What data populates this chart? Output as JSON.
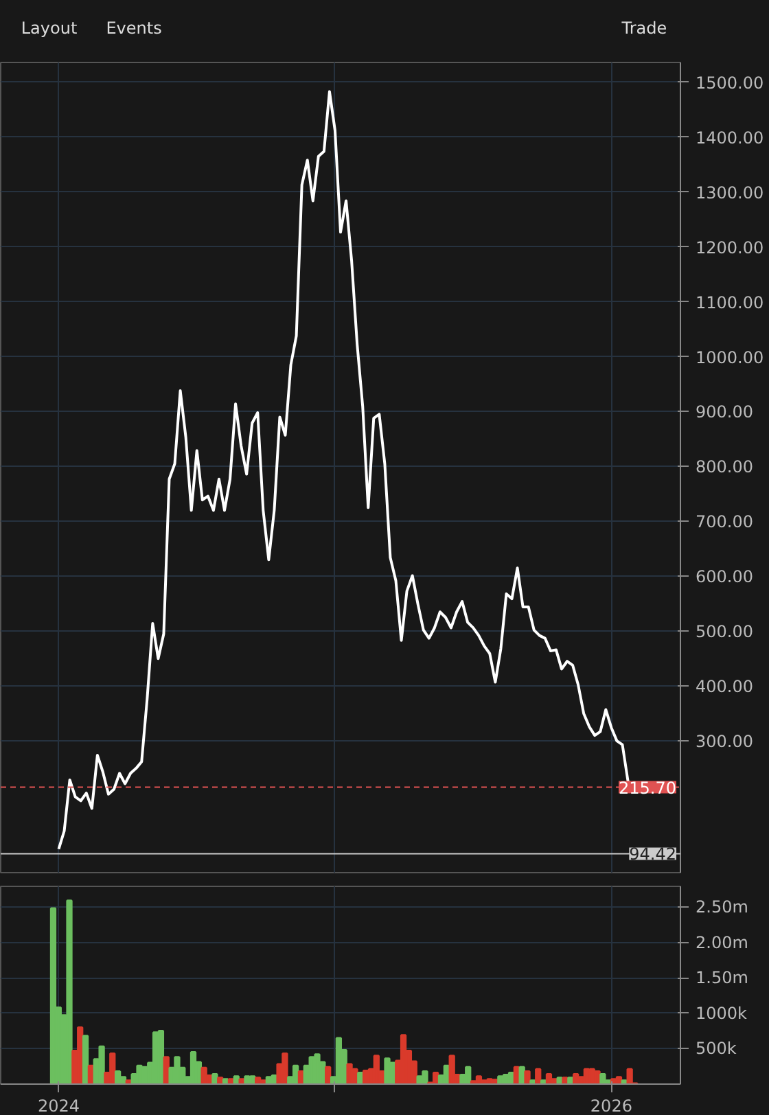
{
  "chart_data": [
    {
      "type": "line",
      "annotations": [
        "Layout",
        "Events",
        "Trade"
      ],
      "x": [
        2024,
        2024.02,
        2024.04,
        2024.06,
        2024.08,
        2024.1,
        2024.12,
        2024.14,
        2024.16,
        2024.18,
        2024.2,
        2024.22,
        2024.24,
        2024.26,
        2024.28,
        2024.3,
        2024.32,
        2024.34,
        2024.36,
        2024.38,
        2024.4,
        2024.42,
        2024.44,
        2024.46,
        2024.48,
        2024.5,
        2024.52,
        2024.54,
        2024.56,
        2024.58,
        2024.6,
        2024.62,
        2024.64,
        2024.66,
        2024.68,
        2024.7,
        2024.72,
        2024.74,
        2024.76,
        2024.78,
        2024.8,
        2024.82,
        2024.84,
        2024.86,
        2024.88,
        2024.9,
        2024.92,
        2024.94,
        2024.96,
        2024.98,
        2025,
        2025.02,
        2025.04,
        2025.06,
        2025.08,
        2025.1,
        2025.12,
        2025.14,
        2025.16,
        2025.18,
        2025.2,
        2025.22,
        2025.24,
        2025.26,
        2025.28,
        2025.3,
        2025.32,
        2025.34,
        2025.36,
        2025.38,
        2025.4,
        2025.42,
        2025.44,
        2025.46,
        2025.48,
        2025.5,
        2025.52,
        2025.54,
        2025.56,
        2025.58,
        2025.6,
        2025.62,
        2025.64,
        2025.66,
        2025.68,
        2025.7,
        2025.72,
        2025.74,
        2025.76,
        2025.78,
        2025.8,
        2025.82,
        2025.84,
        2025.86,
        2025.88,
        2025.9,
        2025.92,
        2025.94,
        2025.96,
        2025.98,
        2026,
        2026.02,
        2026.04,
        2026.06,
        2026.08
      ],
      "series": [
        {
          "color": "#ffffff",
          "values": [
            103,
            136,
            229,
            198,
            191,
            205,
            177,
            274,
            243,
            203,
            212,
            241,
            222,
            241,
            250,
            262,
            376,
            514,
            450,
            495,
            777,
            805,
            938,
            853,
            720,
            829,
            739,
            746,
            720,
            777,
            720,
            777,
            914,
            838,
            786,
            879,
            898,
            720,
            630,
            720,
            890,
            857,
            985,
            1038,
            1313,
            1358,
            1284,
            1365,
            1374,
            1483,
            1412,
            1227,
            1284,
            1175,
            1023,
            910,
            725,
            888,
            895,
            805,
            634,
            592,
            483,
            573,
            601,
            549,
            502,
            487,
            506,
            535,
            525,
            506,
            535,
            554,
            516,
            506,
            492,
            473,
            459,
            407,
            468,
            568,
            559,
            615,
            544,
            544,
            502,
            492,
            487,
            464,
            466,
            431,
            445,
            438,
            402,
            350,
            326,
            310,
            317,
            357,
            324,
            300,
            293,
            227,
            216
          ]
        }
      ],
      "xlim": [
        2023.79,
        2026.25
      ],
      "xticks": [
        {
          "value": 2024,
          "label": null
        },
        {
          "value": 2025,
          "label": null
        },
        {
          "value": 2026,
          "label": null
        }
      ],
      "ylim": [
        60,
        1536
      ],
      "yticks": [
        {
          "value": 300,
          "label": "300.00"
        },
        {
          "value": 400,
          "label": "400.00"
        },
        {
          "value": 500,
          "label": "500.00"
        },
        {
          "value": 600,
          "label": "600.00"
        },
        {
          "value": 700,
          "label": "700.00"
        },
        {
          "value": 800,
          "label": "800.00"
        },
        {
          "value": 900,
          "label": "900.00"
        },
        {
          "value": 1000,
          "label": "1000.00"
        },
        {
          "value": 1100,
          "label": "1100.00"
        },
        {
          "value": 1200,
          "label": "1200.00"
        },
        {
          "value": 1300,
          "label": "1300.00"
        },
        {
          "value": 1400,
          "label": "1400.00"
        },
        {
          "value": 1500,
          "label": "1500.00"
        }
      ],
      "ref_lines": [
        {
          "axis": "y",
          "value": 215.7,
          "label": "215.70",
          "color": "#e05252",
          "line_style": "dashed"
        },
        {
          "axis": "y",
          "value": 94.42,
          "label": "94.42",
          "color": "#cccccc",
          "line_style": "solid"
        }
      ],
      "grid": true,
      "tick_labels": "y"
    },
    {
      "type": "bar",
      "x": [
        2023.98,
        2023.9995,
        2024.019,
        2024.0385,
        2024.058,
        2024.0775,
        2024.097,
        2024.1165,
        2024.136,
        2024.1555,
        2024.175,
        2024.1945,
        2024.214,
        2024.2335,
        2024.253,
        2024.2725,
        2024.292,
        2024.3115,
        2024.331,
        2024.3505,
        2024.37,
        2024.3895,
        2024.409,
        2024.4285,
        2024.448,
        2024.4675,
        2024.487,
        2024.5065,
        2024.526,
        2024.5455,
        2024.565,
        2024.5845,
        2024.604,
        2024.6235,
        2024.643,
        2024.6625,
        2024.682,
        2024.7015,
        2024.721,
        2024.7405,
        2024.76,
        2024.7795,
        2024.799,
        2024.8185,
        2024.838,
        2024.8575,
        2024.877,
        2024.8965,
        2024.916,
        2024.9355,
        2024.955,
        2024.9745,
        2024.994,
        2025.0135,
        2025.033,
        2025.0525,
        2025.072,
        2025.0915,
        2025.111,
        2025.1305,
        2025.15,
        2025.1695,
        2025.189,
        2025.2085,
        2025.228,
        2025.2475,
        2025.267,
        2025.2865,
        2025.306,
        2025.3255,
        2025.345,
        2025.3645,
        2025.384,
        2025.4035,
        2025.423,
        2025.4425,
        2025.462,
        2025.4815,
        2025.501,
        2025.5205,
        2025.54,
        2025.5595,
        2025.579,
        2025.5985,
        2025.618,
        2025.6375,
        2025.657,
        2025.6765,
        2025.696,
        2025.7155,
        2025.735,
        2025.7545,
        2025.774,
        2025.7935,
        2025.813,
        2025.8325,
        2025.852,
        2025.8715,
        2025.891,
        2025.9105,
        2025.93,
        2025.9495,
        2025.969,
        2025.9885,
        2026.008,
        2026.0275,
        2026.047,
        2026.0665,
        2026.086
      ],
      "values": [
        2480000,
        1080000,
        970000,
        2590000,
        470000,
        800000,
        680000,
        260000,
        350000,
        530000,
        160000,
        430000,
        180000,
        100000,
        50000,
        140000,
        260000,
        240000,
        300000,
        730000,
        750000,
        380000,
        230000,
        380000,
        230000,
        100000,
        450000,
        310000,
        230000,
        120000,
        140000,
        90000,
        70000,
        70000,
        110000,
        70000,
        110000,
        110000,
        90000,
        50000,
        100000,
        120000,
        280000,
        430000,
        100000,
        260000,
        180000,
        260000,
        380000,
        420000,
        310000,
        240000,
        100000,
        650000,
        480000,
        280000,
        210000,
        160000,
        190000,
        210000,
        400000,
        180000,
        360000,
        300000,
        330000,
        690000,
        470000,
        320000,
        110000,
        180000,
        20000,
        160000,
        120000,
        260000,
        400000,
        130000,
        130000,
        240000,
        40000,
        110000,
        50000,
        70000,
        60000,
        110000,
        130000,
        160000,
        240000,
        240000,
        180000,
        50000,
        210000,
        50000,
        140000,
        70000,
        90000,
        90000,
        90000,
        140000,
        100000,
        210000,
        210000,
        180000,
        140000,
        50000,
        70000,
        100000,
        50000,
        210000,
        10000
      ],
      "colors": [
        "#6cbf5f",
        "#6cbf5f",
        "#6cbf5f",
        "#6cbf5f",
        "#d93a2b",
        "#d93a2b",
        "#6cbf5f",
        "#d93a2b",
        "#6cbf5f",
        "#6cbf5f",
        "#d93a2b",
        "#d93a2b",
        "#6cbf5f",
        "#6cbf5f",
        "#d93a2b",
        "#6cbf5f",
        "#6cbf5f",
        "#6cbf5f",
        "#6cbf5f",
        "#6cbf5f",
        "#6cbf5f",
        "#d93a2b",
        "#6cbf5f",
        "#6cbf5f",
        "#6cbf5f",
        "#6cbf5f",
        "#6cbf5f",
        "#6cbf5f",
        "#d93a2b",
        "#d93a2b",
        "#6cbf5f",
        "#d93a2b",
        "#6cbf5f",
        "#d93a2b",
        "#6cbf5f",
        "#d93a2b",
        "#6cbf5f",
        "#6cbf5f",
        "#d93a2b",
        "#d93a2b",
        "#6cbf5f",
        "#6cbf5f",
        "#d93a2b",
        "#d93a2b",
        "#6cbf5f",
        "#6cbf5f",
        "#d93a2b",
        "#6cbf5f",
        "#6cbf5f",
        "#6cbf5f",
        "#6cbf5f",
        "#d93a2b",
        "#6cbf5f",
        "#6cbf5f",
        "#6cbf5f",
        "#d93a2b",
        "#d93a2b",
        "#6cbf5f",
        "#d93a2b",
        "#d93a2b",
        "#d93a2b",
        "#d93a2b",
        "#6cbf5f",
        "#6cbf5f",
        "#d93a2b",
        "#d93a2b",
        "#d93a2b",
        "#d93a2b",
        "#6cbf5f",
        "#6cbf5f",
        "#d93a2b",
        "#d93a2b",
        "#6cbf5f",
        "#6cbf5f",
        "#d93a2b",
        "#d93a2b",
        "#6cbf5f",
        "#6cbf5f",
        "#d93a2b",
        "#d93a2b",
        "#d93a2b",
        "#d93a2b",
        "#d93a2b",
        "#6cbf5f",
        "#6cbf5f",
        "#6cbf5f",
        "#d93a2b",
        "#6cbf5f",
        "#d93a2b",
        "#6cbf5f",
        "#d93a2b",
        "#6cbf5f",
        "#d93a2b",
        "#d93a2b",
        "#6cbf5f",
        "#d93a2b",
        "#6cbf5f",
        "#d93a2b",
        "#d93a2b",
        "#d93a2b",
        "#d93a2b",
        "#d93a2b",
        "#6cbf5f",
        "#6cbf5f",
        "#d93a2b",
        "#d93a2b",
        "#6cbf5f",
        "#d93a2b",
        "#d93a2b"
      ],
      "xlim": [
        2023.79,
        2026.25
      ],
      "xticks": [
        2024,
        {
          "value": 2025,
          "label": null
        },
        2026
      ],
      "ylim": [
        0,
        2790000
      ],
      "yticks": [
        {
          "value": 500000,
          "label": "500k"
        },
        {
          "value": 1000000,
          "label": "1000k"
        },
        {
          "value": 1500000,
          "label": "1.50m"
        },
        {
          "value": 2000000,
          "label": "2.00m"
        },
        {
          "value": 2500000,
          "label": "2.50m"
        }
      ],
      "grid": true
    }
  ]
}
